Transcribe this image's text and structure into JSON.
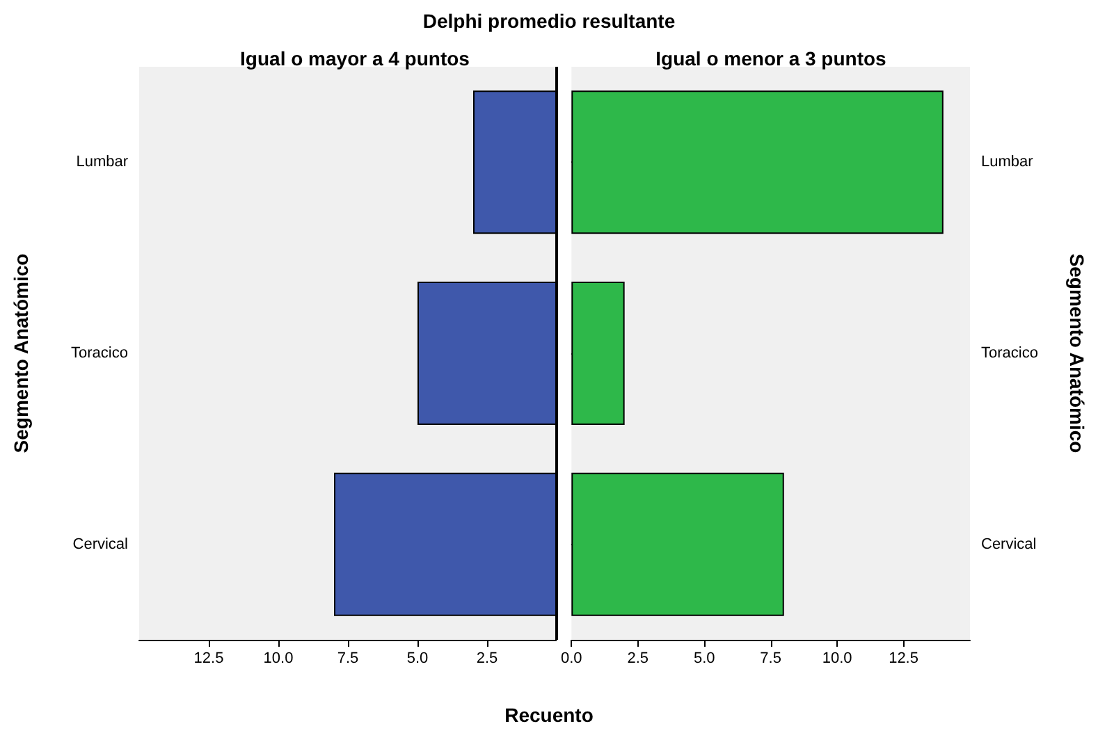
{
  "chart_data": [
    {
      "type": "bar",
      "orientation": "horizontal",
      "title": "Delphi promedio resultante",
      "subtitle": "Igual o mayor a 4 puntos",
      "xlabel": "Recuento",
      "ylabel": "Segmento Anatómico",
      "categories": [
        "Lumbar",
        "Toracico",
        "Cervical"
      ],
      "values": [
        3,
        5,
        8
      ],
      "color": "#3f58ab",
      "xlim": [
        15,
        0
      ],
      "xticks": [
        12.5,
        {
          "value": 10,
          "label": "10.0"
        },
        7.5,
        {
          "value": 5,
          "label": "5.0"
        },
        2.5
      ]
    },
    {
      "type": "bar",
      "orientation": "horizontal",
      "subtitle": "Igual o menor a 3 puntos",
      "ylabel": "Segmento Anatómico",
      "categories": [
        "Lumbar",
        "Toracico",
        "Cervical"
      ],
      "values": [
        14,
        2,
        8
      ],
      "color": "#2eb84a",
      "xlim": [
        0,
        15
      ],
      "xticks": [
        {
          "value": 0,
          "label": "0.0"
        },
        2.5,
        {
          "value": 5,
          "label": "5.0"
        },
        7.5,
        {
          "value": 10,
          "label": "10.0"
        },
        12.5
      ]
    }
  ]
}
